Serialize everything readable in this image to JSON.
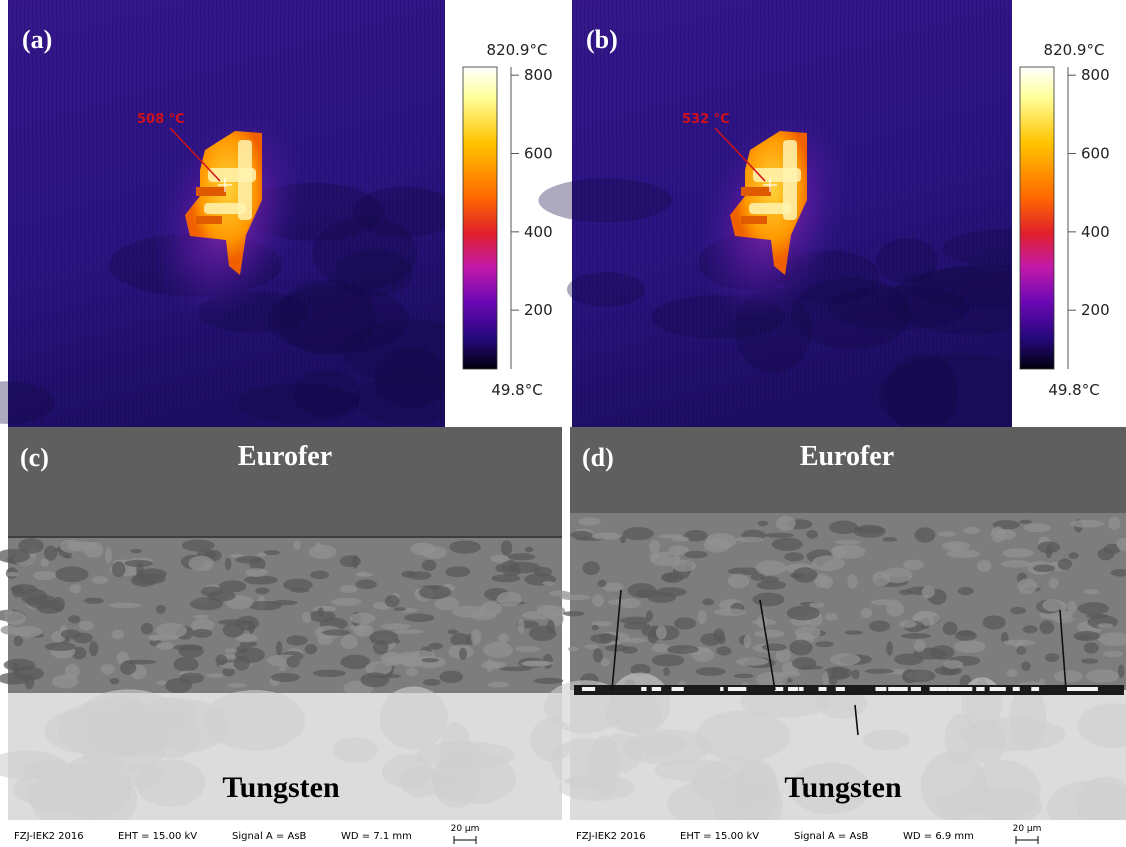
{
  "panels": [
    {
      "label": "(a)",
      "spot_temperature": "508 °C",
      "colorbar": {
        "max": {
          "value": 820.9,
          "label": "820.9°C"
        },
        "min": {
          "value": 49.8,
          "label": "49.8°C"
        },
        "ticks": [
          800,
          600,
          400,
          200
        ]
      }
    },
    {
      "label": "(b)",
      "spot_temperature": "532 °C",
      "colorbar": {
        "max": {
          "value": 820.9,
          "label": "820.9°C"
        },
        "min": {
          "value": 49.8,
          "label": "49.8°C"
        },
        "ticks": [
          800,
          600,
          400,
          200
        ]
      }
    },
    {
      "label": "(c)",
      "top_material": "Eurofer",
      "bottom_material": "Tungsten",
      "footer": {
        "lab": "FZJ-IEK2 2016",
        "eht": "EHT = 15.00 kV",
        "signal": "Signal A = AsB",
        "wd": "WD = 7.1 mm",
        "scale_bar": "20 µm"
      }
    },
    {
      "label": "(d)",
      "top_material": "Eurofer",
      "bottom_material": "Tungsten",
      "footer": {
        "lab": "FZJ-IEK2 2016",
        "eht": "EHT = 15.00 kV",
        "signal": "Signal A = AsB",
        "wd": "WD = 6.9 mm",
        "scale_bar": "20 µm"
      }
    }
  ]
}
